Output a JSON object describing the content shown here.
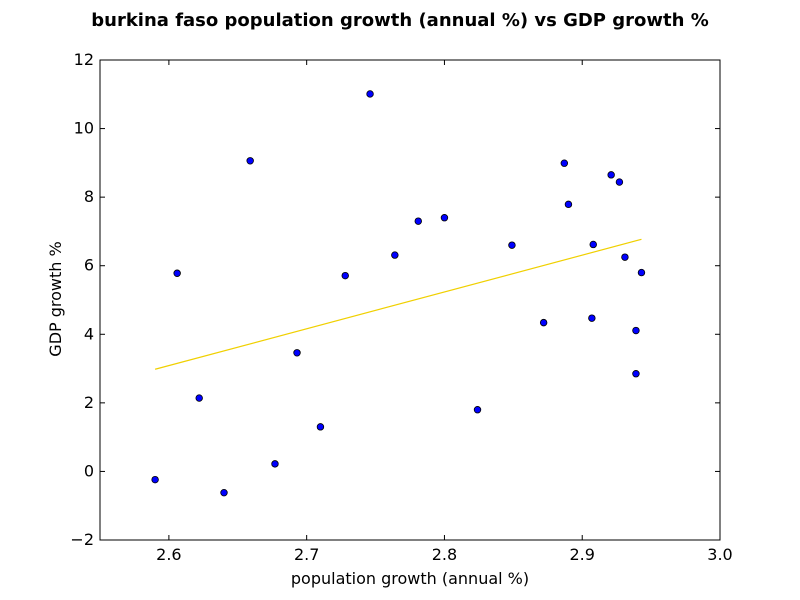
{
  "chart_data": {
    "type": "scatter",
    "title": "burkina faso population growth (annual %) vs GDP growth %",
    "xlabel": "population growth (annual %)",
    "ylabel": "GDP growth %",
    "xlim": [
      2.55,
      3.0
    ],
    "ylim": [
      -2,
      12
    ],
    "xticks": [
      2.6,
      2.7,
      2.8,
      2.9,
      3.0
    ],
    "xtick_labels": [
      "2.6",
      "2.7",
      "2.8",
      "2.9",
      "3.0"
    ],
    "yticks": [
      -2,
      0,
      2,
      4,
      6,
      8,
      10,
      12
    ],
    "ytick_labels": [
      "−2",
      "0",
      "2",
      "4",
      "6",
      "8",
      "10",
      "12"
    ],
    "grid": false,
    "marker_color": "#0000ff",
    "trend_color": "#f0d000",
    "points": [
      {
        "x": 2.59,
        "y": -0.24
      },
      {
        "x": 2.606,
        "y": 5.78
      },
      {
        "x": 2.622,
        "y": 2.14
      },
      {
        "x": 2.64,
        "y": -0.62
      },
      {
        "x": 2.659,
        "y": 9.06
      },
      {
        "x": 2.677,
        "y": 0.22
      },
      {
        "x": 2.693,
        "y": 3.46
      },
      {
        "x": 2.71,
        "y": 1.3
      },
      {
        "x": 2.728,
        "y": 5.71
      },
      {
        "x": 2.746,
        "y": 11.01
      },
      {
        "x": 2.764,
        "y": 6.31
      },
      {
        "x": 2.781,
        "y": 7.3
      },
      {
        "x": 2.8,
        "y": 7.4
      },
      {
        "x": 2.824,
        "y": 1.8
      },
      {
        "x": 2.849,
        "y": 6.6
      },
      {
        "x": 2.872,
        "y": 4.34
      },
      {
        "x": 2.887,
        "y": 8.99
      },
      {
        "x": 2.89,
        "y": 7.79
      },
      {
        "x": 2.907,
        "y": 4.47
      },
      {
        "x": 2.908,
        "y": 6.62
      },
      {
        "x": 2.921,
        "y": 8.65
      },
      {
        "x": 2.927,
        "y": 8.44
      },
      {
        "x": 2.931,
        "y": 6.25
      },
      {
        "x": 2.939,
        "y": 4.11
      },
      {
        "x": 2.939,
        "y": 2.85
      },
      {
        "x": 2.943,
        "y": 5.8
      }
    ],
    "trendline": {
      "x": [
        2.59,
        2.943
      ],
      "y": [
        2.98,
        6.77
      ]
    }
  }
}
